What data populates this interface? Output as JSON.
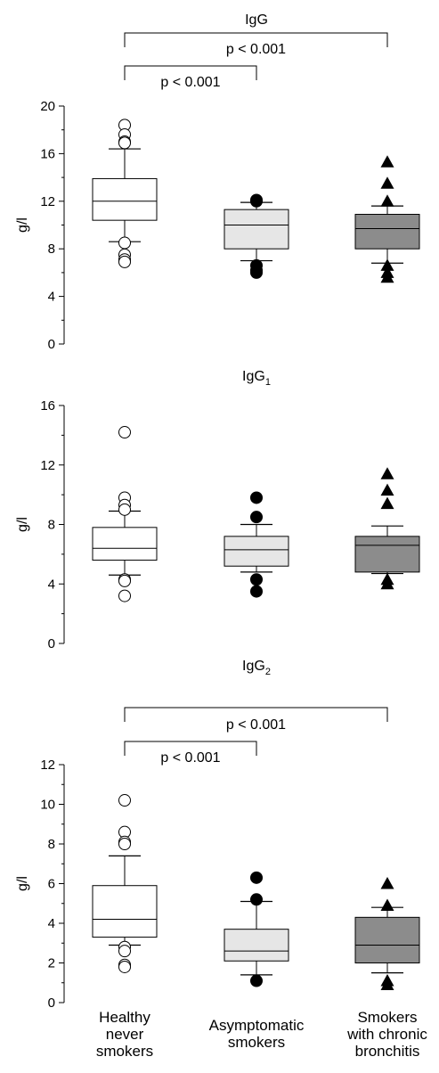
{
  "chart_data": {
    "type": "box",
    "categories": [
      "Healthy never smokers",
      "Asymptomatic smokers",
      "Smokers with chronic bronchitis"
    ],
    "category_lines": [
      [
        "Healthy",
        "never",
        "smokers"
      ],
      [
        "Asymptomatic",
        "smokers"
      ],
      [
        "Smokers",
        "with chronic",
        "bronchitis"
      ]
    ],
    "group_styles": [
      {
        "fill": "#ffffff",
        "marker": "open-circle"
      },
      {
        "fill": "#e6e6e6",
        "marker": "filled-circle"
      },
      {
        "fill": "#8c8c8c",
        "marker": "filled-triangle"
      }
    ],
    "panels": [
      {
        "title": "IgG",
        "title_sub": "",
        "ylabel": "g/l",
        "ylim": [
          0,
          20
        ],
        "yticks": [
          0,
          4,
          8,
          12,
          16,
          20
        ],
        "boxes": [
          {
            "q1": 10.4,
            "median": 12.0,
            "q3": 13.9,
            "whisker_low": 8.6,
            "whisker_high": 16.4,
            "outliers": [
              18.4,
              17.6,
              17.0,
              16.9,
              8.5,
              7.5,
              7.1,
              6.9
            ]
          },
          {
            "q1": 8.0,
            "median": 10.0,
            "q3": 11.3,
            "whisker_low": 7.0,
            "whisker_high": 11.9,
            "outliers": [
              12.0,
              12.1,
              6.6,
              6.2,
              6.0
            ]
          },
          {
            "q1": 8.0,
            "median": 9.7,
            "q3": 10.9,
            "whisker_low": 6.8,
            "whisker_high": 11.6,
            "outliers": [
              15.3,
              13.5,
              12.0,
              6.6,
              6.0,
              5.6
            ]
          }
        ],
        "significance": [
          {
            "from": 0,
            "to": 1,
            "label": "p < 0.001"
          },
          {
            "from": 0,
            "to": 2,
            "label": "p < 0.001"
          }
        ]
      },
      {
        "title": "IgG",
        "title_sub": "1",
        "ylabel": "g/l",
        "ylim": [
          0,
          16
        ],
        "yticks": [
          0,
          4,
          8,
          12,
          16
        ],
        "boxes": [
          {
            "q1": 5.6,
            "median": 6.4,
            "q3": 7.8,
            "whisker_low": 4.6,
            "whisker_high": 8.9,
            "outliers": [
              14.2,
              9.8,
              9.3,
              9.0,
              4.3,
              4.2,
              3.2
            ]
          },
          {
            "q1": 5.2,
            "median": 6.3,
            "q3": 7.2,
            "whisker_low": 4.8,
            "whisker_high": 8.0,
            "outliers": [
              9.8,
              8.5,
              4.3,
              3.5
            ]
          },
          {
            "q1": 4.8,
            "median": 6.6,
            "q3": 7.2,
            "whisker_low": 4.7,
            "whisker_high": 7.9,
            "outliers": [
              11.4,
              10.3,
              9.4,
              4.3,
              4.0
            ]
          }
        ],
        "significance": []
      },
      {
        "title": "IgG",
        "title_sub": "2",
        "ylabel": "g/l",
        "ylim": [
          0,
          12
        ],
        "yticks": [
          0,
          2,
          4,
          6,
          8,
          10,
          12
        ],
        "boxes": [
          {
            "q1": 3.3,
            "median": 4.2,
            "q3": 5.9,
            "whisker_low": 2.9,
            "whisker_high": 7.4,
            "outliers": [
              10.2,
              8.6,
              8.1,
              8.0,
              2.8,
              2.6,
              1.9,
              1.8
            ]
          },
          {
            "q1": 2.1,
            "median": 2.6,
            "q3": 3.7,
            "whisker_low": 1.4,
            "whisker_high": 5.1,
            "outliers": [
              6.3,
              5.2,
              1.1
            ]
          },
          {
            "q1": 2.0,
            "median": 2.9,
            "q3": 4.3,
            "whisker_low": 1.5,
            "whisker_high": 4.8,
            "outliers": [
              6.0,
              4.9,
              1.1,
              0.9
            ]
          }
        ],
        "significance": [
          {
            "from": 0,
            "to": 1,
            "label": "p < 0.001"
          },
          {
            "from": 0,
            "to": 2,
            "label": "p < 0.001"
          }
        ]
      }
    ]
  }
}
